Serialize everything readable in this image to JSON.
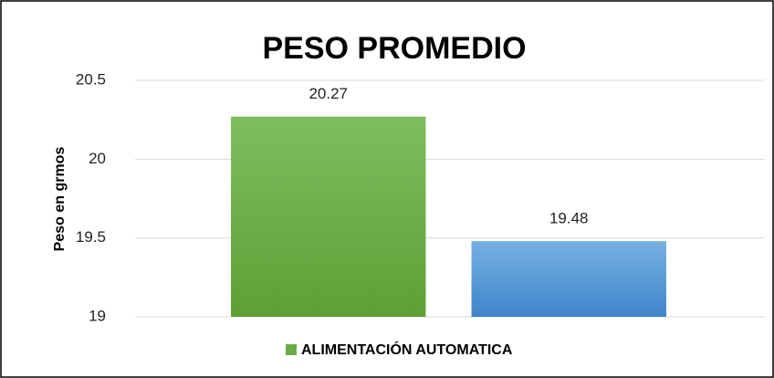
{
  "chart_data": {
    "type": "bar",
    "title": "PESO PROMEDIO",
    "y_label": "Peso en grmos",
    "categories": [
      null,
      null
    ],
    "values": [
      20.27,
      19.48
    ],
    "colors": [
      "#6aab45",
      "#4f95d8"
    ],
    "legend": {
      "name": "ALIMENTACIÓN AUTOMATICA",
      "color": "#6aab45"
    },
    "ylim": [
      19,
      20.5
    ],
    "yticks": [
      19,
      19.5,
      20,
      20.5
    ],
    "grid": true
  }
}
